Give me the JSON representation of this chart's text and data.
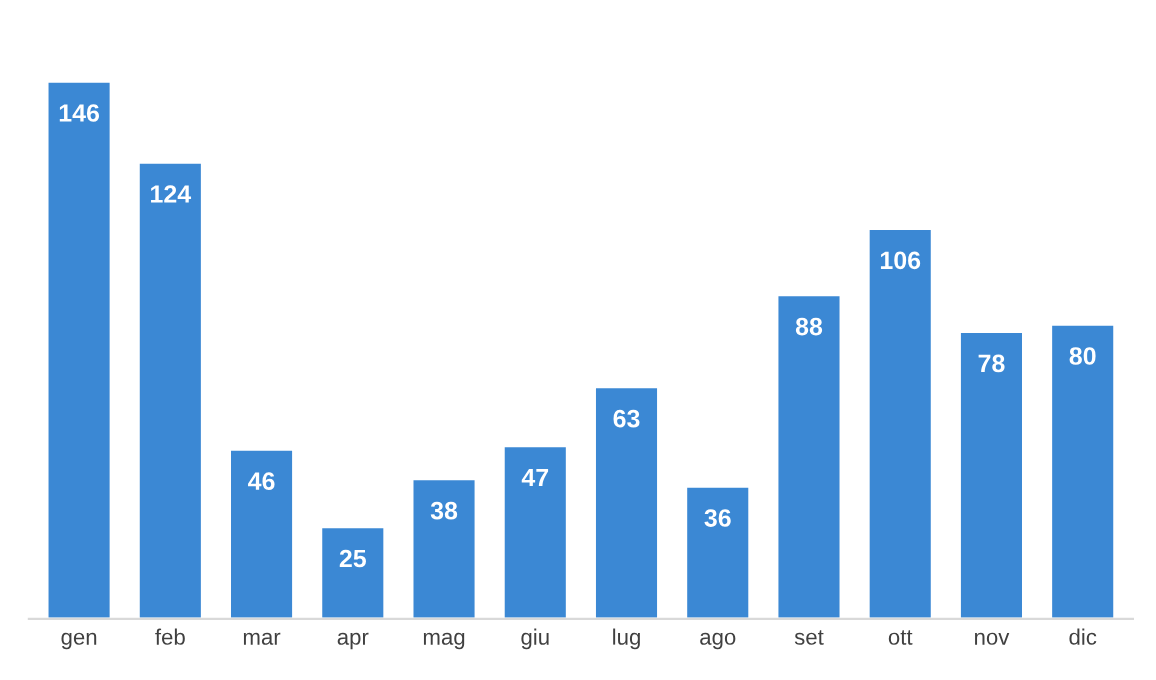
{
  "chart_data": {
    "type": "bar",
    "categories": [
      "gen",
      "feb",
      "mar",
      "apr",
      "mag",
      "giu",
      "lug",
      "ago",
      "set",
      "ott",
      "nov",
      "dic"
    ],
    "values": [
      146,
      124,
      46,
      25,
      38,
      47,
      63,
      36,
      88,
      106,
      78,
      80
    ],
    "color": "#3b88d4",
    "data_labels": true,
    "grid": false,
    "legend": false
  }
}
